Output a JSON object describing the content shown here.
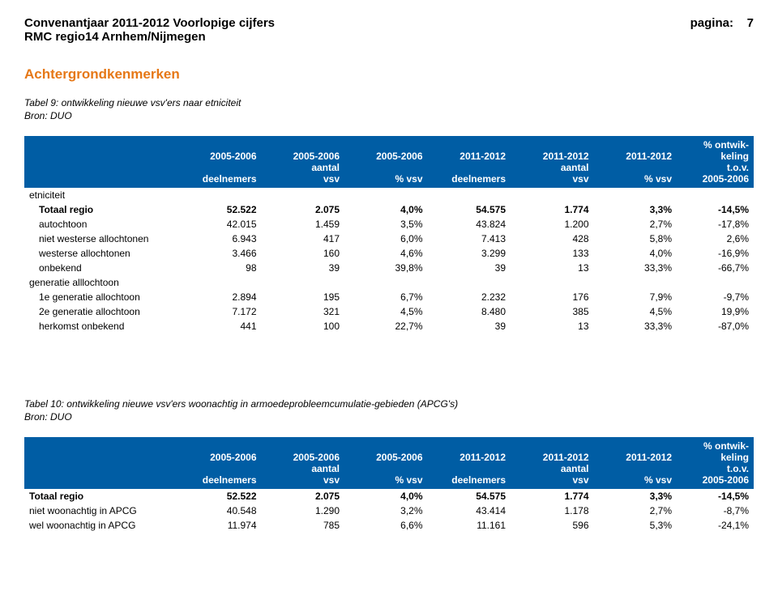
{
  "header": {
    "title_line1": "Convenantjaar 2011-2012 Voorlopige cijfers",
    "page_label": "pagina:",
    "page_number": "7",
    "title_line2": "RMC regio14 Arnhem/Nijmegen"
  },
  "section_title": "Achtergrondkenmerken",
  "table1": {
    "caption": "Tabel 9: ontwikkeling nieuwe vsv'ers naar etniciteit",
    "source": "Bron: DUO",
    "columns": {
      "c0": "",
      "c1": {
        "l1": "2005-2006",
        "l2": "",
        "l3": "deelnemers"
      },
      "c2": {
        "l1": "2005-2006",
        "l2": "aantal",
        "l3": "vsv"
      },
      "c3": {
        "l1": "2005-2006",
        "l2": "",
        "l3": "% vsv"
      },
      "c4": {
        "l1": "2011-2012",
        "l2": "",
        "l3": "deelnemers"
      },
      "c5": {
        "l1": "2011-2012",
        "l2": "aantal",
        "l3": "vsv"
      },
      "c6": {
        "l1": "2011-2012",
        "l2": "",
        "l3": "% vsv"
      },
      "c7": {
        "l1": "% ontwik-",
        "l2": "keling",
        "l3": "t.o.v.",
        "l4": "2005-2006"
      }
    },
    "rows": [
      {
        "label": "etniciteit",
        "group": true
      },
      {
        "label": "Totaal regio",
        "v": [
          "52.522",
          "2.075",
          "4,0%",
          "54.575",
          "1.774",
          "3,3%",
          "-14,5%"
        ],
        "bold": true,
        "indent": true
      },
      {
        "label": "autochtoon",
        "v": [
          "42.015",
          "1.459",
          "3,5%",
          "43.824",
          "1.200",
          "2,7%",
          "-17,8%"
        ],
        "indent": true
      },
      {
        "label": "niet westerse allochtonen",
        "v": [
          "6.943",
          "417",
          "6,0%",
          "7.413",
          "428",
          "5,8%",
          "2,6%"
        ],
        "indent": true
      },
      {
        "label": "westerse allochtonen",
        "v": [
          "3.466",
          "160",
          "4,6%",
          "3.299",
          "133",
          "4,0%",
          "-16,9%"
        ],
        "indent": true
      },
      {
        "label": "onbekend",
        "v": [
          "98",
          "39",
          "39,8%",
          "39",
          "13",
          "33,3%",
          "-66,7%"
        ],
        "indent": true
      },
      {
        "label": "generatie alllochtoon",
        "group": true
      },
      {
        "label": "1e generatie allochtoon",
        "v": [
          "2.894",
          "195",
          "6,7%",
          "2.232",
          "176",
          "7,9%",
          "-9,7%"
        ],
        "indent": true
      },
      {
        "label": "2e generatie allochtoon",
        "v": [
          "7.172",
          "321",
          "4,5%",
          "8.480",
          "385",
          "4,5%",
          "19,9%"
        ],
        "indent": true
      },
      {
        "label": "herkomst onbekend",
        "v": [
          "441",
          "100",
          "22,7%",
          "39",
          "13",
          "33,3%",
          "-87,0%"
        ],
        "indent": true
      }
    ]
  },
  "table2": {
    "caption": "Tabel 10: ontwikkeling nieuwe vsv'ers woonachtig in armoedeprobleemcumulatie-gebieden (APCG's)",
    "source": "Bron: DUO",
    "rows": [
      {
        "label": "Totaal regio",
        "v": [
          "52.522",
          "2.075",
          "4,0%",
          "54.575",
          "1.774",
          "3,3%",
          "-14,5%"
        ],
        "bold": true
      },
      {
        "label": "niet woonachtig in APCG",
        "v": [
          "40.548",
          "1.290",
          "3,2%",
          "43.414",
          "1.178",
          "2,7%",
          "-8,7%"
        ]
      },
      {
        "label": "wel woonachtig in APCG",
        "v": [
          "11.974",
          "785",
          "6,6%",
          "11.161",
          "596",
          "5,3%",
          "-24,1%"
        ]
      }
    ]
  }
}
